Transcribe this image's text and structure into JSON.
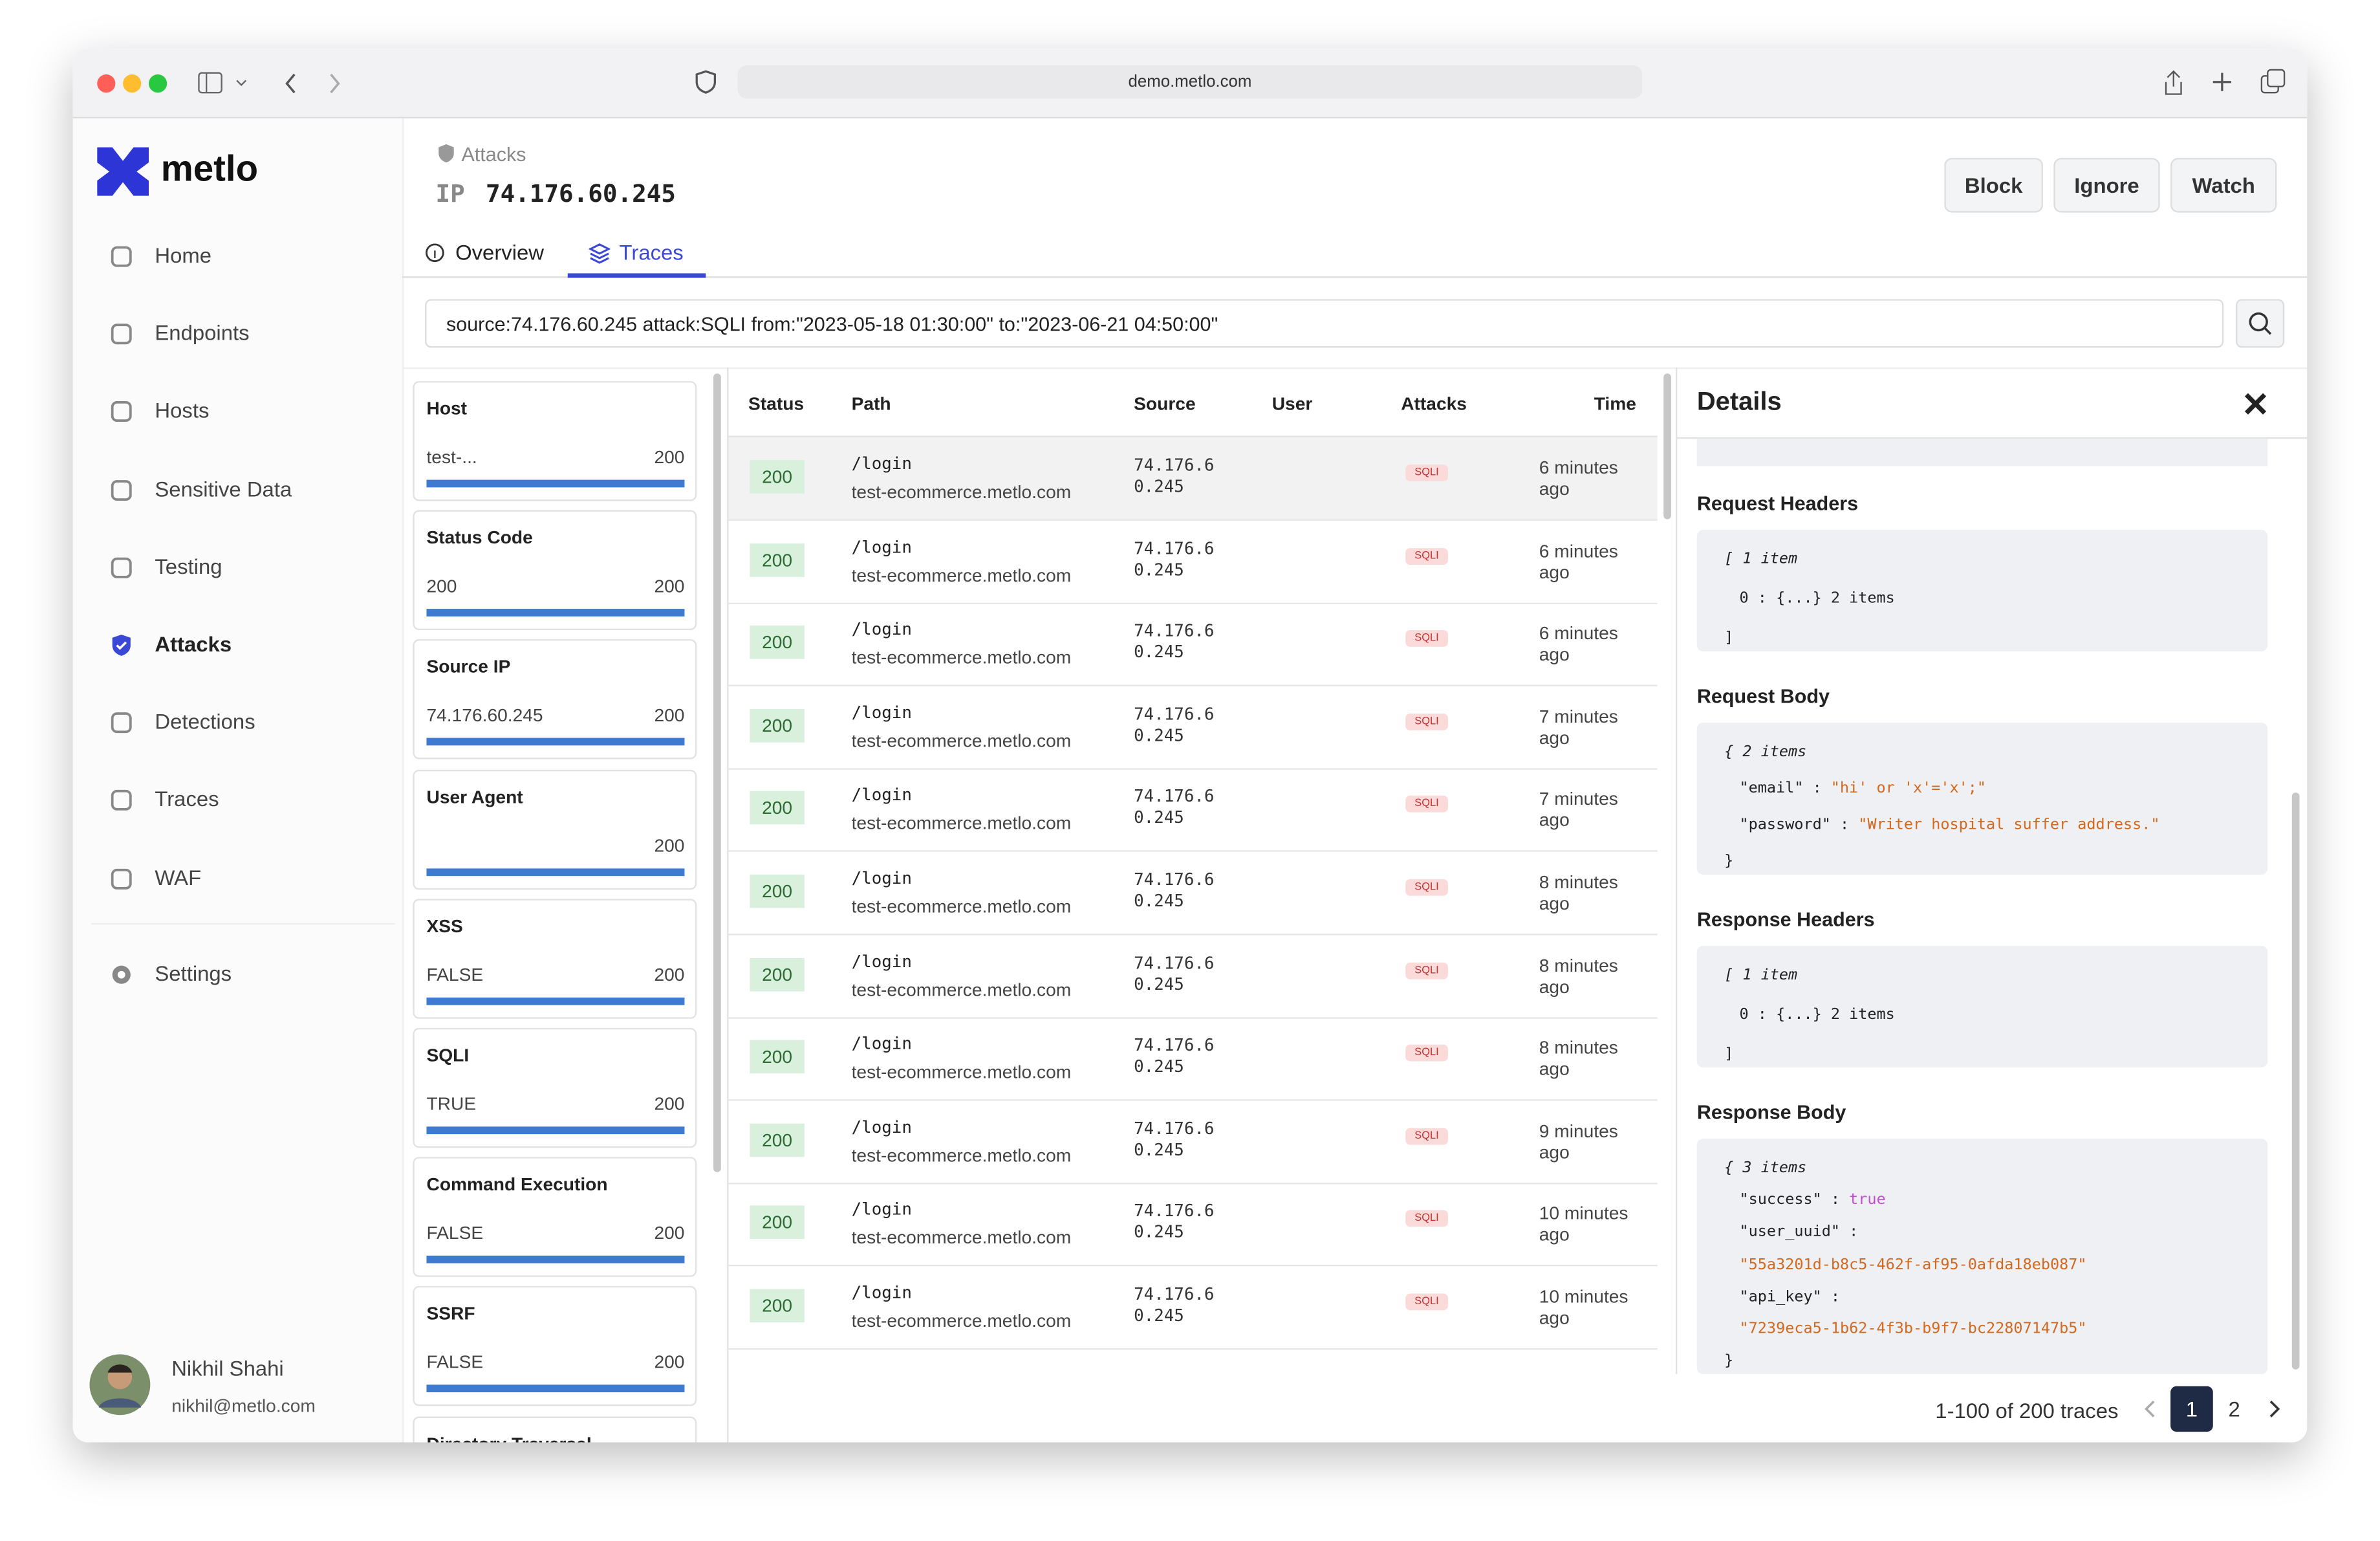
{
  "browser": {
    "url": "demo.metlo.com"
  },
  "sidebar": {
    "brand": "metlo",
    "nav": [
      "Home",
      "Endpoints",
      "Hosts",
      "Sensitive Data",
      "Testing",
      "Attacks",
      "Detections",
      "Traces",
      "WAF"
    ],
    "settings": "Settings",
    "user": {
      "name": "Nikhil Shahi",
      "email": "nikhil@metlo.com"
    }
  },
  "header": {
    "breadcrumb": "Attacks",
    "ip_label": "IP",
    "ip": "74.176.60.245",
    "actions": [
      "Block",
      "Ignore",
      "Watch"
    ],
    "tabs": [
      "Overview",
      "Traces"
    ]
  },
  "search": {
    "query": "source:74.176.60.245 attack:SQLI from:\"2023-05-18 01:30:00\" to:\"2023-06-21 04:50:00\""
  },
  "filters": [
    {
      "title": "Host",
      "value": "test-...",
      "count": 200
    },
    {
      "title": "Status Code",
      "value": "200",
      "count": 200
    },
    {
      "title": "Source IP",
      "value": "74.176.60.245",
      "count": 200
    },
    {
      "title": "User Agent",
      "value": null,
      "count": 200
    },
    {
      "title": "XSS",
      "value": "FALSE",
      "count": 200
    },
    {
      "title": "SQLI",
      "value": "TRUE",
      "count": 200
    },
    {
      "title": "Command Execution",
      "value": "FALSE",
      "count": 200
    },
    {
      "title": "SSRF",
      "value": "FALSE",
      "count": 200
    },
    {
      "title": "Directory Traversal",
      "value": null,
      "count": null
    }
  ],
  "table": {
    "columns": [
      "Status",
      "Path",
      "Source",
      "User",
      "Attacks",
      "Time"
    ],
    "rows": [
      {
        "status": 200,
        "path": "/login",
        "host": "test-ecommerce.metlo.com",
        "source": "74.176.60.245",
        "attack": "SQLI",
        "time": "6 minutes ago"
      },
      {
        "status": 200,
        "path": "/login",
        "host": "test-ecommerce.metlo.com",
        "source": "74.176.60.245",
        "attack": "SQLI",
        "time": "6 minutes ago"
      },
      {
        "status": 200,
        "path": "/login",
        "host": "test-ecommerce.metlo.com",
        "source": "74.176.60.245",
        "attack": "SQLI",
        "time": "6 minutes ago"
      },
      {
        "status": 200,
        "path": "/login",
        "host": "test-ecommerce.metlo.com",
        "source": "74.176.60.245",
        "attack": "SQLI",
        "time": "7 minutes ago"
      },
      {
        "status": 200,
        "path": "/login",
        "host": "test-ecommerce.metlo.com",
        "source": "74.176.60.245",
        "attack": "SQLI",
        "time": "7 minutes ago"
      },
      {
        "status": 200,
        "path": "/login",
        "host": "test-ecommerce.metlo.com",
        "source": "74.176.60.245",
        "attack": "SQLI",
        "time": "8 minutes ago"
      },
      {
        "status": 200,
        "path": "/login",
        "host": "test-ecommerce.metlo.com",
        "source": "74.176.60.245",
        "attack": "SQLI",
        "time": "8 minutes ago"
      },
      {
        "status": 200,
        "path": "/login",
        "host": "test-ecommerce.metlo.com",
        "source": "74.176.60.245",
        "attack": "SQLI",
        "time": "8 minutes ago"
      },
      {
        "status": 200,
        "path": "/login",
        "host": "test-ecommerce.metlo.com",
        "source": "74.176.60.245",
        "attack": "SQLI",
        "time": "9 minutes ago"
      },
      {
        "status": 200,
        "path": "/login",
        "host": "test-ecommerce.metlo.com",
        "source": "74.176.60.245",
        "attack": "SQLI",
        "time": "10 minutes ago"
      },
      {
        "status": 200,
        "path": "/login",
        "host": "test-ecommerce.metlo.com",
        "source": "74.176.60.245",
        "attack": "SQLI",
        "time": "10 minutes ago"
      }
    ]
  },
  "details": {
    "title": "Details",
    "sections": [
      {
        "title": "Request Headers",
        "lines": [
          "[ 1 item",
          "0 : {...} 2 items",
          "]"
        ]
      },
      {
        "title": "Request Body",
        "lines": [
          "{ 2 items",
          {
            "key": "\"email\" :",
            "value": "\"hi' or 'x'='x';\""
          },
          {
            "key": "\"password\" :",
            "value": "\"Writer hospital suffer address.\""
          },
          "}"
        ]
      },
      {
        "title": "Response Headers",
        "lines": [
          "[ 1 item",
          "0 : {...} 2 items",
          "]"
        ]
      },
      {
        "title": "Response Body",
        "lines": [
          "{ 3 items",
          {
            "key": "\"success\" :",
            "value": "true"
          },
          {
            "key": "\"user_uuid\" :"
          },
          {
            "value": "\"55a3201d-b8c5-462f-af95-0afda18eb087\""
          },
          {
            "key": "\"api_key\" :"
          },
          {
            "value": "\"7239eca5-1b62-4f3b-b9f7-bc22807147b5\""
          },
          "}"
        ]
      }
    ]
  },
  "pagination": {
    "summary": "1-100 of 200 traces",
    "pages": [
      1,
      2
    ]
  }
}
